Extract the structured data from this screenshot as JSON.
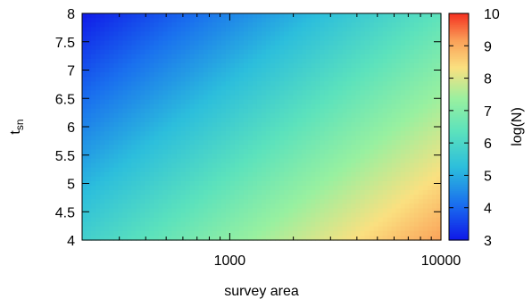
{
  "chart_data": {
    "type": "heatmap",
    "title": "",
    "xlabel": "survey area",
    "ylabel_main": "t",
    "ylabel_sub": "sn",
    "colorbar_label": "log(N)",
    "x_scale": "log",
    "xlim": [
      200,
      10000
    ],
    "x_ticks": [
      1000,
      10000
    ],
    "x_tick_labels": [
      "1000",
      "10000"
    ],
    "ylim": [
      4,
      8
    ],
    "y_ticks": [
      4,
      4.5,
      5,
      5.5,
      6,
      6.5,
      7,
      7.5,
      8
    ],
    "y_tick_labels": [
      "4",
      "4.5",
      "5",
      "5.5",
      "6",
      "6.5",
      "7",
      "7.5",
      "8"
    ],
    "colorbar_range": [
      3,
      10
    ],
    "colorbar_ticks": [
      3,
      4,
      5,
      6,
      7,
      8,
      9,
      10
    ],
    "colorbar_tick_labels": [
      "3",
      "4",
      "5",
      "6",
      "7",
      "8",
      "9",
      "10"
    ],
    "colormap": "rainbow",
    "z_samples": [
      {
        "x": 200,
        "y": 8,
        "z": 3.1
      },
      {
        "x": 10000,
        "y": 8,
        "z": 6.3
      },
      {
        "x": 200,
        "y": 4,
        "z": 5.7
      },
      {
        "x": 1000,
        "y": 6,
        "z": 5.8
      },
      {
        "x": 10000,
        "y": 4,
        "z": 9.2
      }
    ]
  }
}
